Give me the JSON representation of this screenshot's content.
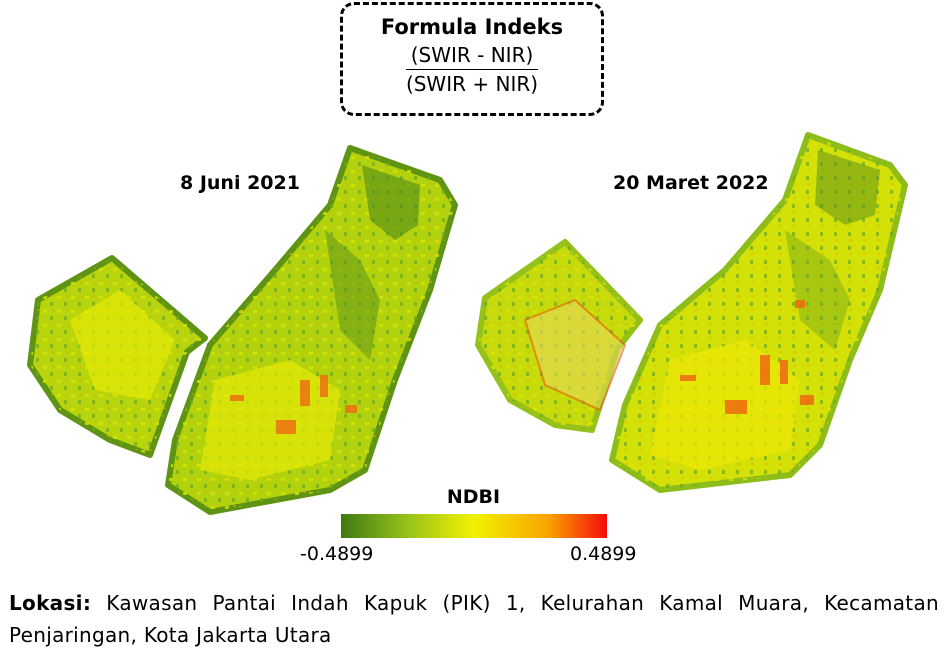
{
  "formula": {
    "title": "Formula Indeks",
    "numerator": "(SWIR - NIR)",
    "denominator": "(SWIR + NIR)"
  },
  "maps": [
    {
      "date": "8 Juni 2021"
    },
    {
      "date": "20 Maret 2022"
    }
  ],
  "legend": {
    "title": "NDBI",
    "min": "-0.4899",
    "max": "0.4899",
    "colors": [
      "#3f7a12",
      "#97c21a",
      "#f2f200",
      "#f9a300",
      "#f50b0b"
    ]
  },
  "caption": {
    "label": "Lokasi:",
    "text": "Kawasan Pantai Indah Kapuk (PIK) 1, Kelurahan Kamal Muara, Kecamatan Penjaringan, Kota Jakarta Utara"
  }
}
